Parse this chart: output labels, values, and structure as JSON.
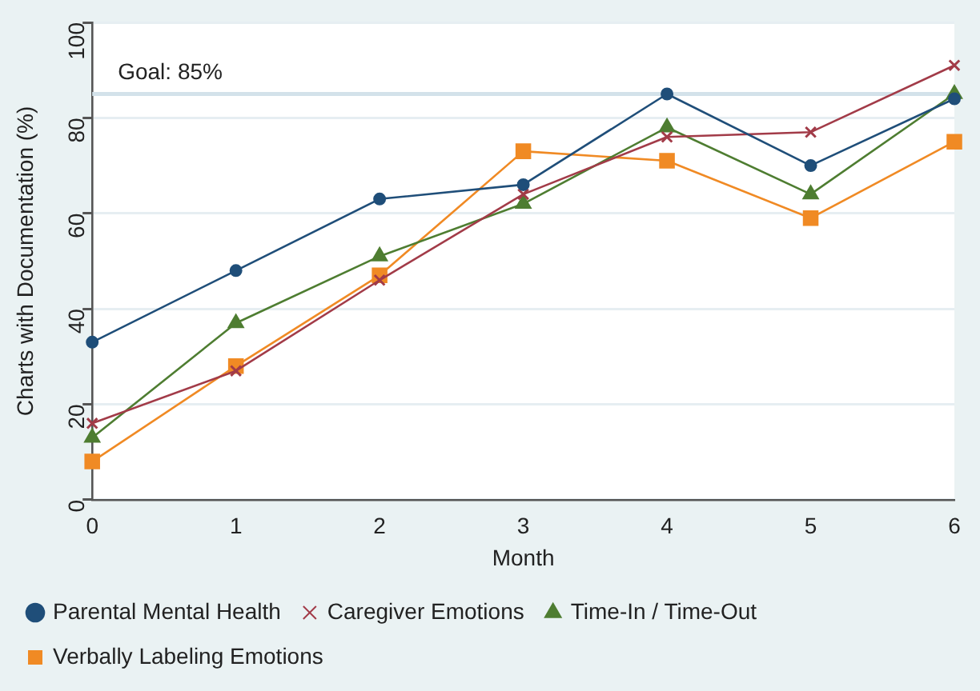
{
  "chart_data": {
    "type": "line",
    "xlabel": "Month",
    "ylabel": "Charts with Documentation (%)",
    "x": [
      0,
      1,
      2,
      3,
      4,
      5,
      6
    ],
    "series": [
      {
        "name": "Parental Mental Health",
        "color": "#1f4e79",
        "marker": "circle",
        "values": [
          33,
          48,
          63,
          66,
          85,
          70,
          84
        ]
      },
      {
        "name": "Caregiver Emotions",
        "color": "#a23b48",
        "marker": "cross",
        "values": [
          16,
          27,
          46,
          64,
          76,
          77,
          91
        ]
      },
      {
        "name": "Time-In / Time-Out",
        "color": "#4e7d31",
        "marker": "triangle",
        "values": [
          13,
          37,
          51,
          62,
          78,
          64,
          85
        ]
      },
      {
        "name": "Verbally Labeling Emotions",
        "color": "#f08a24",
        "marker": "square",
        "values": [
          8,
          28,
          47,
          73,
          71,
          59,
          75
        ]
      }
    ],
    "xlim": [
      0,
      6
    ],
    "xticks": [
      0,
      1,
      2,
      3,
      4,
      5,
      6
    ],
    "ylim": [
      0,
      100
    ],
    "yticks": [
      0,
      20,
      40,
      60,
      80,
      100
    ],
    "ref_lines": [
      {
        "axis": "y",
        "value": 85,
        "label": "Goal: 85%",
        "color": "#d3e2ea"
      }
    ],
    "grid": "y",
    "legend": "bottom",
    "line_style": "solid"
  }
}
